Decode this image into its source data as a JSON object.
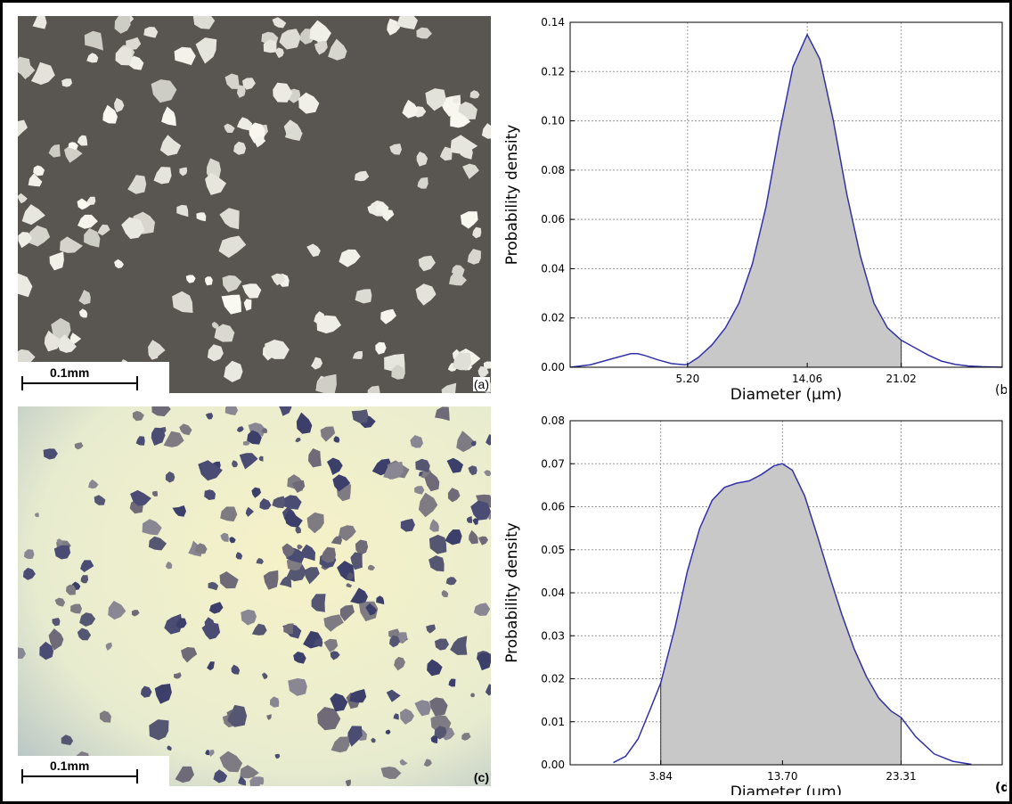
{
  "panels": {
    "a": {
      "label": "(a)",
      "scale_label": "0.1mm"
    },
    "c": {
      "label": "(c)",
      "scale_label": "0.1mm"
    }
  },
  "chart_data": [
    {
      "type": "area",
      "panel_label": "(b)",
      "xlabel": "Diameter (μm)",
      "ylabel": "Probability density",
      "ylim": [
        0,
        0.14
      ],
      "yticks": [
        "0.00",
        "0.02",
        "0.04",
        "0.06",
        "0.08",
        "0.10",
        "0.12",
        "0.14"
      ],
      "xticks": [
        {
          "value": 5.2,
          "label": "5.20"
        },
        {
          "value": 14.06,
          "label": "14.06"
        },
        {
          "value": 21.02,
          "label": "21.02"
        }
      ],
      "xlim": [
        -3.5,
        28.5
      ],
      "grid": true,
      "shaded_range": [
        5.2,
        21.02
      ],
      "line_color": "#3232a8",
      "fill_color": "#c8c8c8",
      "series": [
        {
          "x": [
            -3.5,
            -2,
            0,
            1,
            1.5,
            2,
            3,
            4,
            5,
            5.2,
            6,
            7,
            8,
            9,
            10,
            11,
            12,
            13,
            14.06,
            15,
            16,
            17,
            18,
            19,
            20,
            21.02,
            22,
            23,
            24,
            25,
            26,
            27,
            28.5
          ],
          "values": [
            0,
            0.001,
            0.004,
            0.0055,
            0.0055,
            0.0048,
            0.003,
            0.0015,
            0.001,
            0.0012,
            0.004,
            0.009,
            0.016,
            0.026,
            0.042,
            0.065,
            0.095,
            0.122,
            0.135,
            0.125,
            0.1,
            0.07,
            0.045,
            0.026,
            0.016,
            0.011,
            0.008,
            0.005,
            0.0025,
            0.0012,
            0.0005,
            0.0002,
            0
          ]
        }
      ]
    },
    {
      "type": "area",
      "panel_label": "(d)",
      "xlabel": "Diameter (μm)",
      "ylabel": "Probability density",
      "ylim": [
        0,
        0.08
      ],
      "yticks": [
        "0.00",
        "0.01",
        "0.02",
        "0.03",
        "0.04",
        "0.05",
        "0.06",
        "0.07",
        "0.08"
      ],
      "xticks": [
        {
          "value": 3.84,
          "label": "3.84"
        },
        {
          "value": 13.7,
          "label": "13.70"
        },
        {
          "value": 23.31,
          "label": "23.31"
        }
      ],
      "xlim": [
        -3.5,
        31.5
      ],
      "grid": true,
      "shaded_range": [
        3.84,
        23.31
      ],
      "line_color": "#3232a8",
      "fill_color": "#c8c8c8",
      "series": [
        {
          "x": [
            0,
            1,
            2,
            3,
            3.84,
            5,
            6,
            7,
            8,
            9,
            10,
            11,
            12,
            13,
            13.7,
            14.5,
            15.5,
            16.5,
            17.5,
            18.5,
            19.5,
            20.5,
            21.5,
            22.5,
            23.31,
            24.5,
            26,
            27.5,
            29
          ],
          "values": [
            0.0005,
            0.002,
            0.006,
            0.013,
            0.019,
            0.032,
            0.045,
            0.055,
            0.0615,
            0.0645,
            0.0655,
            0.066,
            0.0675,
            0.0695,
            0.07,
            0.0685,
            0.0625,
            0.0535,
            0.044,
            0.035,
            0.027,
            0.0205,
            0.0155,
            0.0125,
            0.011,
            0.0065,
            0.0025,
            0.0008,
            0.0001
          ]
        }
      ]
    }
  ]
}
